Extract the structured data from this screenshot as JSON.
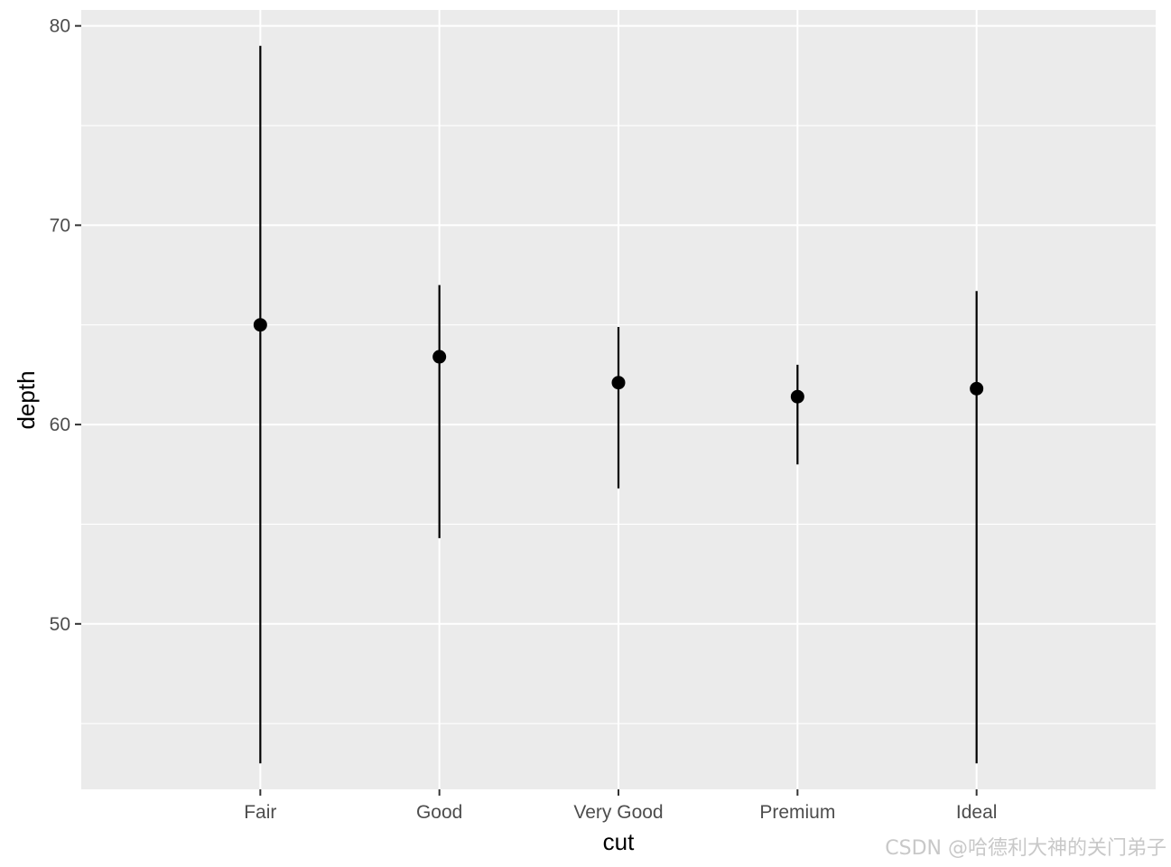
{
  "chart_data": {
    "type": "pointrange",
    "xlabel": "cut",
    "ylabel": "depth",
    "categories": [
      "Fair",
      "Good",
      "Very Good",
      "Premium",
      "Ideal"
    ],
    "points": [
      {
        "category": "Fair",
        "y": 65.0,
        "ymin": 43.0,
        "ymax": 79.0
      },
      {
        "category": "Good",
        "y": 63.4,
        "ymin": 54.3,
        "ymax": 67.0
      },
      {
        "category": "Very Good",
        "y": 62.1,
        "ymin": 56.8,
        "ymax": 64.9
      },
      {
        "category": "Premium",
        "y": 61.4,
        "ymin": 58.0,
        "ymax": 63.0
      },
      {
        "category": "Ideal",
        "y": 61.8,
        "ymin": 43.0,
        "ymax": 66.7
      }
    ],
    "y_ticks": [
      50,
      60,
      70,
      80
    ],
    "ylim": [
      41.7,
      80.8
    ],
    "grid": true,
    "panel_color": "#ebebeb",
    "grid_color": "#ffffff",
    "mark_color": "#000000"
  },
  "watermark": "CSDN @哈德利大神的关门弟子"
}
